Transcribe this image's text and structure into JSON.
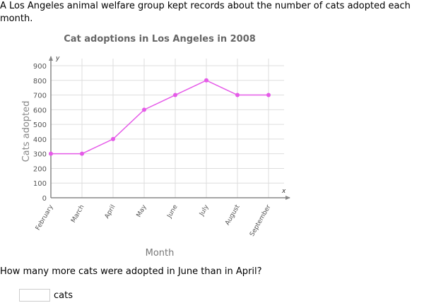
{
  "intro": "A Los Angeles animal welfare group kept records about the number of cats adopted each month.",
  "question": "How many more cats were adopted in June than in April?",
  "answer": {
    "value": "",
    "unit": "cats"
  },
  "chart_data": {
    "type": "line",
    "title": "Cat adoptions in Los Angeles in 2008",
    "xlabel": "Month",
    "ylabel": "Cats adopted",
    "x_axis_letter": "x",
    "y_axis_letter": "y",
    "categories": [
      "February",
      "March",
      "April",
      "May",
      "June",
      "July",
      "August",
      "September"
    ],
    "values": [
      300,
      300,
      400,
      600,
      700,
      800,
      700,
      700
    ],
    "ylim": [
      0,
      900
    ],
    "yticks": [
      0,
      100,
      200,
      300,
      400,
      500,
      600,
      700,
      800,
      900
    ],
    "grid": true,
    "line_color": "#e55ae8"
  }
}
